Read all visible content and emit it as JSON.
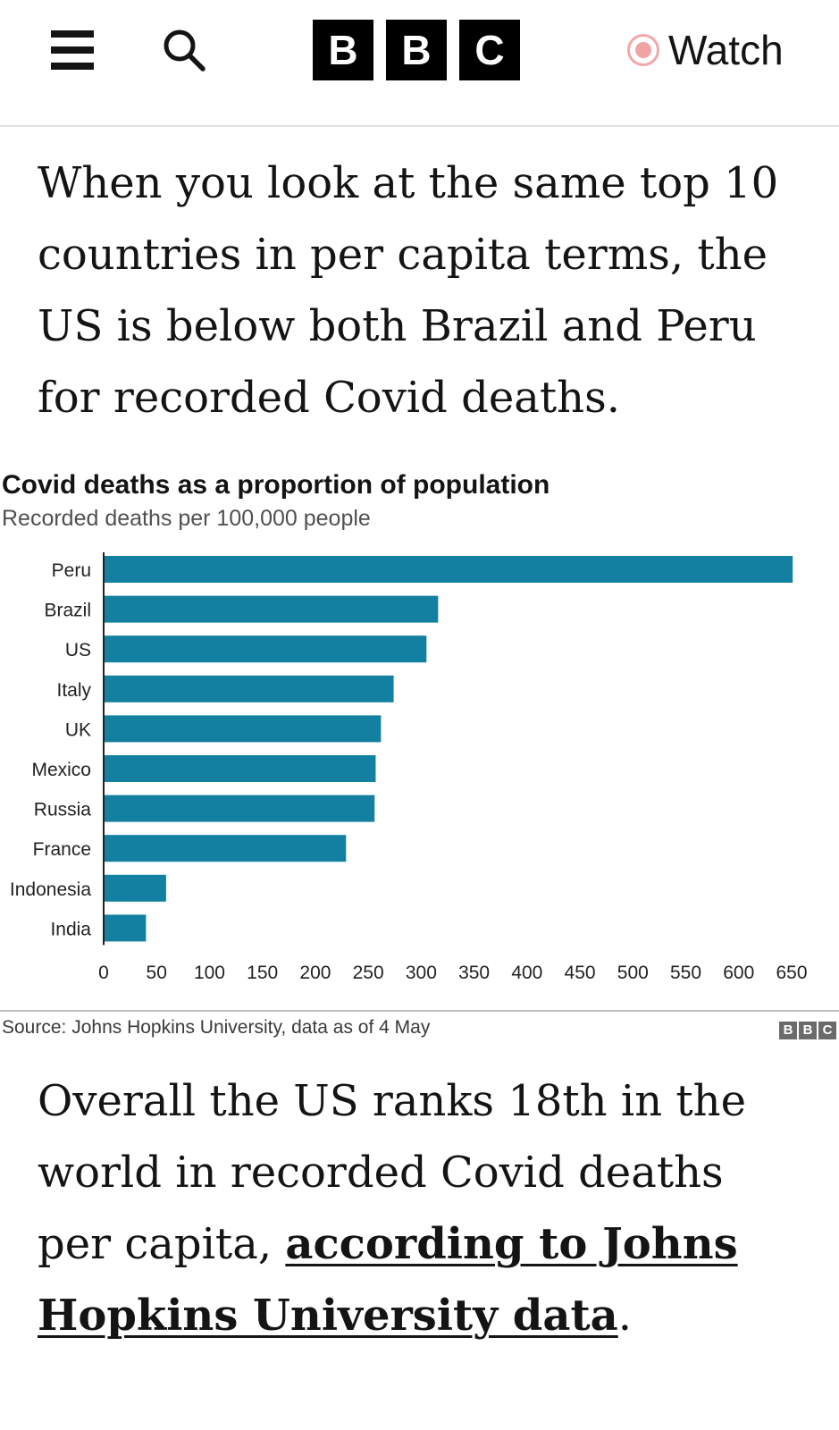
{
  "header": {
    "logo_letters": [
      "B",
      "B",
      "C"
    ],
    "watch_label": "Watch"
  },
  "article": {
    "paragraph_1": "When you look at the same top 10 countries in per capita terms, the US is below both Brazil and Peru for recorded Covid deaths.",
    "paragraph_2_prefix": "Overall the US ranks 18th in the world in recorded Covid deaths per capita, ",
    "paragraph_2_link": "according to Johns Hopkins University data",
    "paragraph_2_suffix": "."
  },
  "chart_data": {
    "type": "bar",
    "orientation": "horizontal",
    "title": "Covid deaths as a proportion of population",
    "subtitle": "Recorded deaths per 100,000 people",
    "categories": [
      "Peru",
      "Brazil",
      "US",
      "Italy",
      "UK",
      "Mexico",
      "Russia",
      "France",
      "Indonesia",
      "India"
    ],
    "values": [
      651,
      316,
      305,
      274,
      262,
      257,
      256,
      229,
      59,
      40
    ],
    "xlim": [
      0,
      650
    ],
    "xticks": [
      "0",
      "50",
      "100",
      "150",
      "200",
      "250",
      "300",
      "350",
      "400",
      "450",
      "500",
      "550",
      "600",
      "650"
    ],
    "xlabel": "",
    "ylabel": "",
    "bar_color": "#1380a1",
    "source": "Source: Johns Hopkins University, data as of 4 May",
    "source_logo_letters": [
      "B",
      "B",
      "C"
    ]
  }
}
